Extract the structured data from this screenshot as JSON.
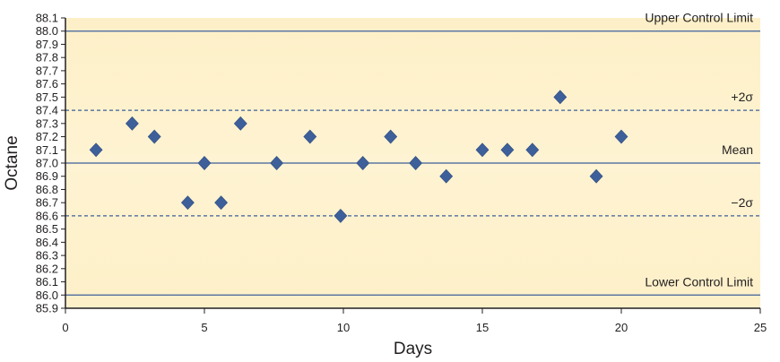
{
  "chart_data": {
    "type": "scatter",
    "title": "",
    "xlabel": "Days",
    "ylabel": "Octane",
    "xlim": [
      0,
      25
    ],
    "ylim": [
      85.9,
      88.1
    ],
    "x_ticks": [
      0,
      5,
      10,
      15,
      20,
      25
    ],
    "y_ticks": [
      "85.9",
      "86.0",
      "86.1",
      "86.2",
      "86.3",
      "86.4",
      "86.5",
      "86.6",
      "86.7",
      "86.8",
      "86.9",
      "87.0",
      "87.1",
      "87.2",
      "87.3",
      "87.4",
      "87.5",
      "87.6",
      "87.7",
      "87.8",
      "87.9",
      "88.0",
      "88.1"
    ],
    "grid": false,
    "marker": "diamond",
    "series": [
      {
        "x": [
          1.1,
          2.4,
          3.2,
          4.4,
          5.0,
          5.6,
          6.3,
          7.6,
          8.8,
          9.9,
          10.7,
          11.7,
          12.6,
          13.7,
          15.0,
          15.9,
          16.8,
          17.8,
          19.1,
          20.0
        ],
        "y": [
          87.1,
          87.3,
          87.2,
          86.7,
          87.0,
          86.7,
          87.3,
          87.0,
          87.2,
          86.6,
          87.0,
          87.2,
          87.0,
          86.9,
          87.1,
          87.1,
          87.1,
          87.5,
          86.9,
          87.2
        ]
      }
    ],
    "reference_lines": [
      {
        "label": "Upper Control Limit",
        "y": 88.0,
        "style": "solid"
      },
      {
        "label": "+2σ",
        "y": 87.4,
        "style": "dashed"
      },
      {
        "label": "Mean",
        "y": 87.0,
        "style": "solid"
      },
      {
        "label": "−2σ",
        "y": 86.6,
        "style": "dashed"
      },
      {
        "label": "Lower Control Limit",
        "y": 86.0,
        "style": "solid"
      }
    ],
    "colors": {
      "plot_background": "#fdf0c8",
      "marker": "#3d5f9a",
      "reference_line": "#3d5f9a",
      "axis": "#231f20"
    }
  }
}
